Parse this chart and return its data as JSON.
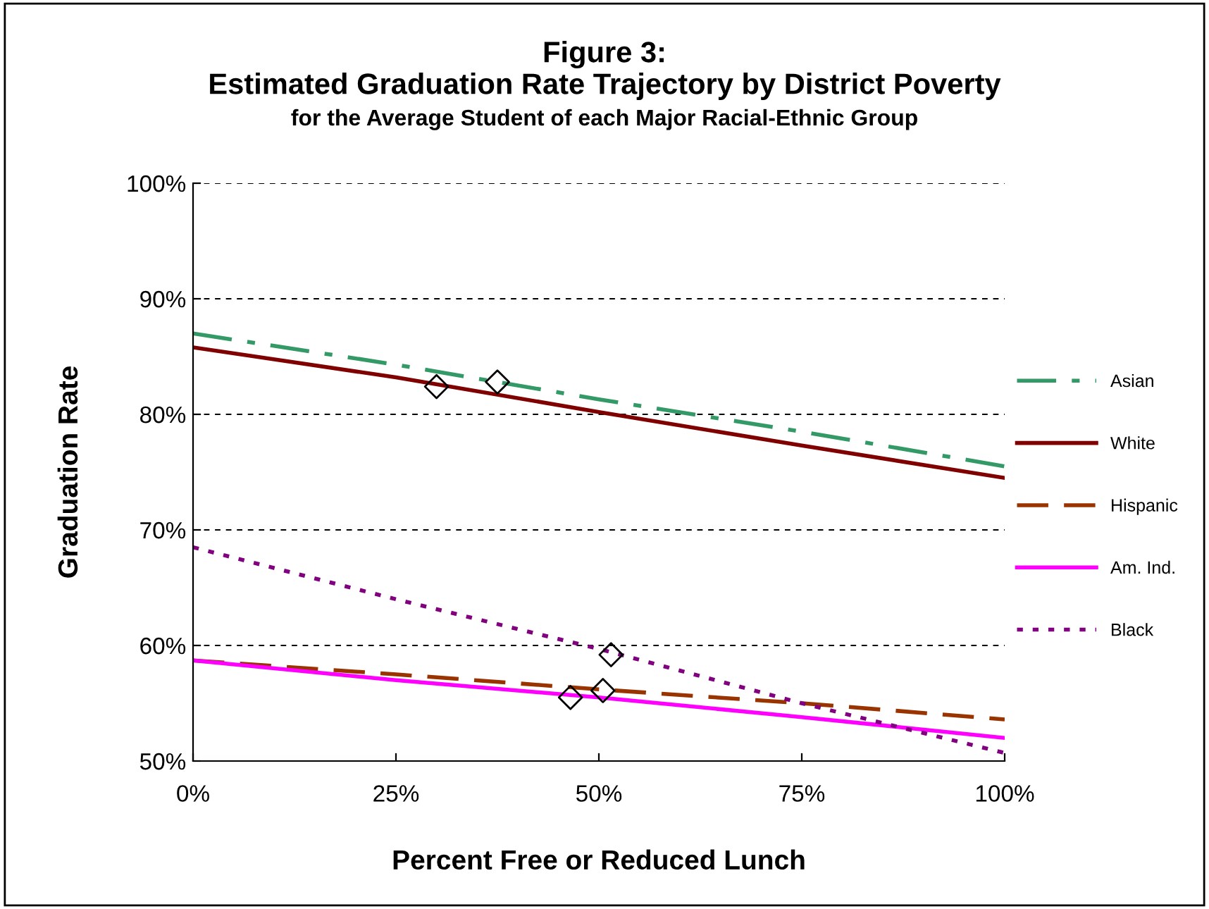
{
  "chart_data": {
    "type": "line",
    "title": "Figure 3:\nEstimated Graduation Rate Trajectory by District Poverty",
    "subtitle": "for the Average Student of each Major Racial-Ethnic Group",
    "xlabel": "Percent Free or Reduced Lunch",
    "ylabel": "Graduation Rate",
    "xlim": [
      0,
      100
    ],
    "xticks": [
      {
        "value": 0,
        "label": "0%"
      },
      {
        "value": 25,
        "label": "25%"
      },
      {
        "value": 50,
        "label": "50%"
      },
      {
        "value": 75,
        "label": "75%"
      },
      {
        "value": 100,
        "label": "100%"
      }
    ],
    "ylim": [
      50,
      100
    ],
    "yticks": [
      {
        "value": 50,
        "label": "50%"
      },
      {
        "value": 60,
        "label": "60%"
      },
      {
        "value": 70,
        "label": "70%"
      },
      {
        "value": 80,
        "label": "80%"
      },
      {
        "value": 90,
        "label": "90%"
      },
      {
        "value": 100,
        "label": "100%"
      }
    ],
    "grid": "y",
    "legend": "right",
    "marker": "none",
    "x": [
      0,
      25,
      50,
      75,
      100
    ],
    "series": [
      {
        "name": "Asian",
        "color": "#339966",
        "line_style": "dashdot",
        "values": [
          87,
          84.3,
          81.3,
          78.5,
          75.5
        ]
      },
      {
        "name": "White",
        "color": "#800000",
        "line_style": "solid",
        "values": [
          85.8,
          83.2,
          80.2,
          77.3,
          74.5
        ]
      },
      {
        "name": "Hispanic",
        "color": "#993300",
        "line_style": "dashed",
        "values": [
          58.7,
          57.5,
          56.2,
          55,
          53.6
        ]
      },
      {
        "name": "Am. Ind.",
        "color": "#ff00ff",
        "line_style": "solid",
        "values": [
          58.7,
          57,
          55.5,
          53.8,
          52
        ]
      },
      {
        "name": "Black",
        "color": "#800080",
        "line_style": "dotted",
        "values": [
          68.5,
          64,
          59.7,
          55,
          50.7
        ]
      },
      {
        "type": "scatter",
        "color": "#000000",
        "marker": "diamond",
        "x": [
          37.5,
          30,
          50.5,
          46.5,
          51.5
        ],
        "values": [
          82.8,
          82.4,
          56.1,
          55.5,
          59.2
        ]
      }
    ]
  }
}
